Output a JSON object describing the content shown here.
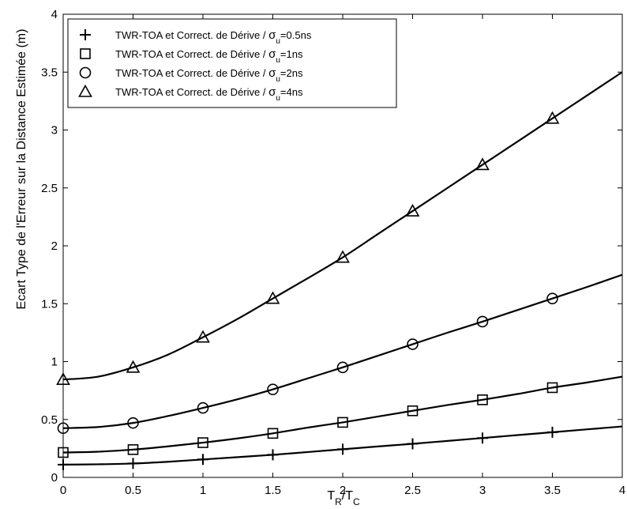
{
  "chart_data": {
    "type": "line",
    "xlabel": {
      "base": "T",
      "sub1": "R",
      "mid": "/T",
      "sub2": "C"
    },
    "ylabel": "Ecart Type de l'Erreur sur la Distance Estimée (m)",
    "xlim": [
      0,
      4
    ],
    "ylim": [
      0,
      4
    ],
    "xticks": [
      0,
      0.5,
      1,
      1.5,
      2,
      2.5,
      3,
      3.5,
      4
    ],
    "yticks": [
      0,
      0.5,
      1,
      1.5,
      2,
      2.5,
      3,
      3.5,
      4
    ],
    "grid": false,
    "legend_position": "top-left",
    "color": "#000000",
    "marker_x": [
      0,
      0.5,
      1,
      1.5,
      2,
      2.5,
      3,
      3.5
    ],
    "x": [
      0,
      0.25,
      0.5,
      0.75,
      1,
      1.25,
      1.5,
      1.75,
      2,
      2.25,
      2.5,
      2.75,
      3,
      3.25,
      3.5,
      3.75,
      4
    ],
    "series": [
      {
        "marker": "plus",
        "legend": {
          "prefix": "TWR-TOA et Correct. de Dérive / ",
          "sub": "u",
          "suffix": "=0.5ns"
        },
        "values": [
          0.11,
          0.113,
          0.12,
          0.135,
          0.155,
          0.175,
          0.195,
          0.219,
          0.243,
          0.267,
          0.29,
          0.315,
          0.34,
          0.365,
          0.39,
          0.415,
          0.44
        ]
      },
      {
        "marker": "square",
        "legend": {
          "prefix": "TWR-TOA et Correct. de Dérive / ",
          "sub": "u",
          "suffix": "=1ns"
        },
        "values": [
          0.215,
          0.222,
          0.24,
          0.268,
          0.3,
          0.337,
          0.38,
          0.43,
          0.475,
          0.525,
          0.575,
          0.625,
          0.67,
          0.72,
          0.775,
          0.82,
          0.87
        ]
      },
      {
        "marker": "circle",
        "legend": {
          "prefix": "TWR-TOA et Correct. de Dérive / ",
          "sub": "u",
          "suffix": "=2ns"
        },
        "values": [
          0.425,
          0.435,
          0.47,
          0.53,
          0.6,
          0.675,
          0.76,
          0.855,
          0.95,
          1.05,
          1.15,
          1.25,
          1.345,
          1.445,
          1.545,
          1.645,
          1.75
        ]
      },
      {
        "marker": "triangle",
        "legend": {
          "prefix": "TWR-TOA et Correct. de Dérive / ",
          "sub": "u",
          "suffix": "=4ns"
        },
        "values": [
          0.845,
          0.87,
          0.95,
          1.06,
          1.21,
          1.37,
          1.545,
          1.72,
          1.9,
          2.1,
          2.3,
          2.5,
          2.7,
          2.9,
          3.1,
          3.3,
          3.5
        ]
      }
    ]
  }
}
